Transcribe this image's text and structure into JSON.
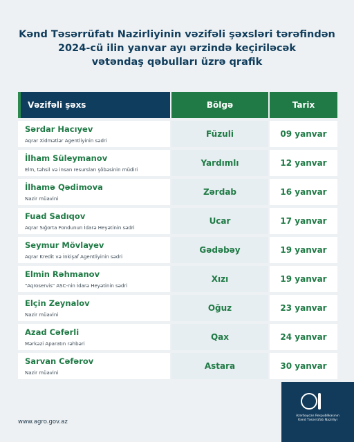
{
  "title": {
    "line1": "Kənd Təsərrüfatı Nazirliyinin vəzifəli şəxsləri tərəfindən",
    "line2": "2024-cü ilin yanvar ayı ərzində keçiriləcək",
    "line3": "vətəndaş qəbulları üzrə qrafik"
  },
  "table": {
    "headers": {
      "person": "Vəzifəli şəxs",
      "region": "Bölgə",
      "date": "Tarix"
    },
    "rows": [
      {
        "name": "Sərdar Hacıyev",
        "position": "Aqrar Xidmətlər Agentliyinin sədri",
        "region": "Füzuli",
        "date": "09 yanvar"
      },
      {
        "name": "İlham Süleymanov",
        "position": "Elm, təhsil və insan resursları şöbəsinin müdiri",
        "region": "Yardımlı",
        "date": "12 yanvar"
      },
      {
        "name": "İlhamə Qədimova",
        "position": "Nazir müavini",
        "region": "Zərdab",
        "date": "16 yanvar"
      },
      {
        "name": "Fuad Sadıqov",
        "position": "Aqrar Sığorta Fondunun İdarə Heyətinin sədri",
        "region": "Ucar",
        "date": "17 yanvar"
      },
      {
        "name": "Seymur Mövlayev",
        "position": "Aqrar Kredit və İnkişaf Agentliyinin sədri",
        "region": "Gədəbəy",
        "date": "19 yanvar"
      },
      {
        "name": "Elmin Rəhmanov",
        "position": "\"Aqroservis\" ASC-nin İdarə Heyətinin sədri",
        "region": "Xızı",
        "date": "19 yanvar"
      },
      {
        "name": "Elçin Zeynalov",
        "position": "Nazir müavini",
        "region": "Oğuz",
        "date": "23 yanvar"
      },
      {
        "name": "Azad Cəfərli",
        "position": "Mərkəzi Aparatın rəhbəri",
        "region": "Qax",
        "date": "24 yanvar"
      },
      {
        "name": "Sarvan Cəfərov",
        "position": "Nazir müavini",
        "region": "Astara",
        "date": "30 yanvar"
      }
    ]
  },
  "footer": {
    "url": "www.agro.gov.az",
    "logo_line1": "Azərbaycan Respublikasının",
    "logo_line2": "Kənd Təsərrüfatı Nazirliyi"
  },
  "colors": {
    "navy": "#0f3d5d",
    "green": "#1f7a45",
    "background": "#eef1f3"
  }
}
